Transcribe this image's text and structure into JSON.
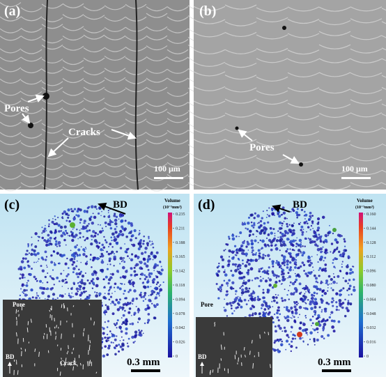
{
  "panels": [
    {
      "label": "(a)",
      "annotations": [
        "Pores",
        "Cracks"
      ],
      "scale_bar": "100 μm"
    },
    {
      "label": "(b)",
      "annotations": [
        "Pores"
      ],
      "scale_bar": "100 μm"
    },
    {
      "label": "(c)",
      "direction": "BD",
      "colorbar": {
        "title": "Volume",
        "unit": "(10⁻³mm³)",
        "ticks": [
          "0.235",
          "0.211",
          "0.188",
          "0.165",
          "0.142",
          "0.118",
          "0.094",
          "0.078",
          "0.042",
          "0.026",
          "0"
        ]
      },
      "scale_bar": "0.3 mm",
      "inset": {
        "labels": [
          "Pore",
          "BD",
          "Crack"
        ]
      }
    },
    {
      "label": "(d)",
      "direction": "BD",
      "colorbar": {
        "title": "Volume",
        "unit": "(10⁻³mm³)",
        "ticks": [
          "0.160",
          "0.144",
          "0.128",
          "0.112",
          "0.096",
          "0.080",
          "0.064",
          "0.048",
          "0.032",
          "0.016",
          "0"
        ]
      },
      "scale_bar": "0.3 mm",
      "inset": {
        "labels": [
          "Pore",
          "BD"
        ]
      }
    }
  ]
}
